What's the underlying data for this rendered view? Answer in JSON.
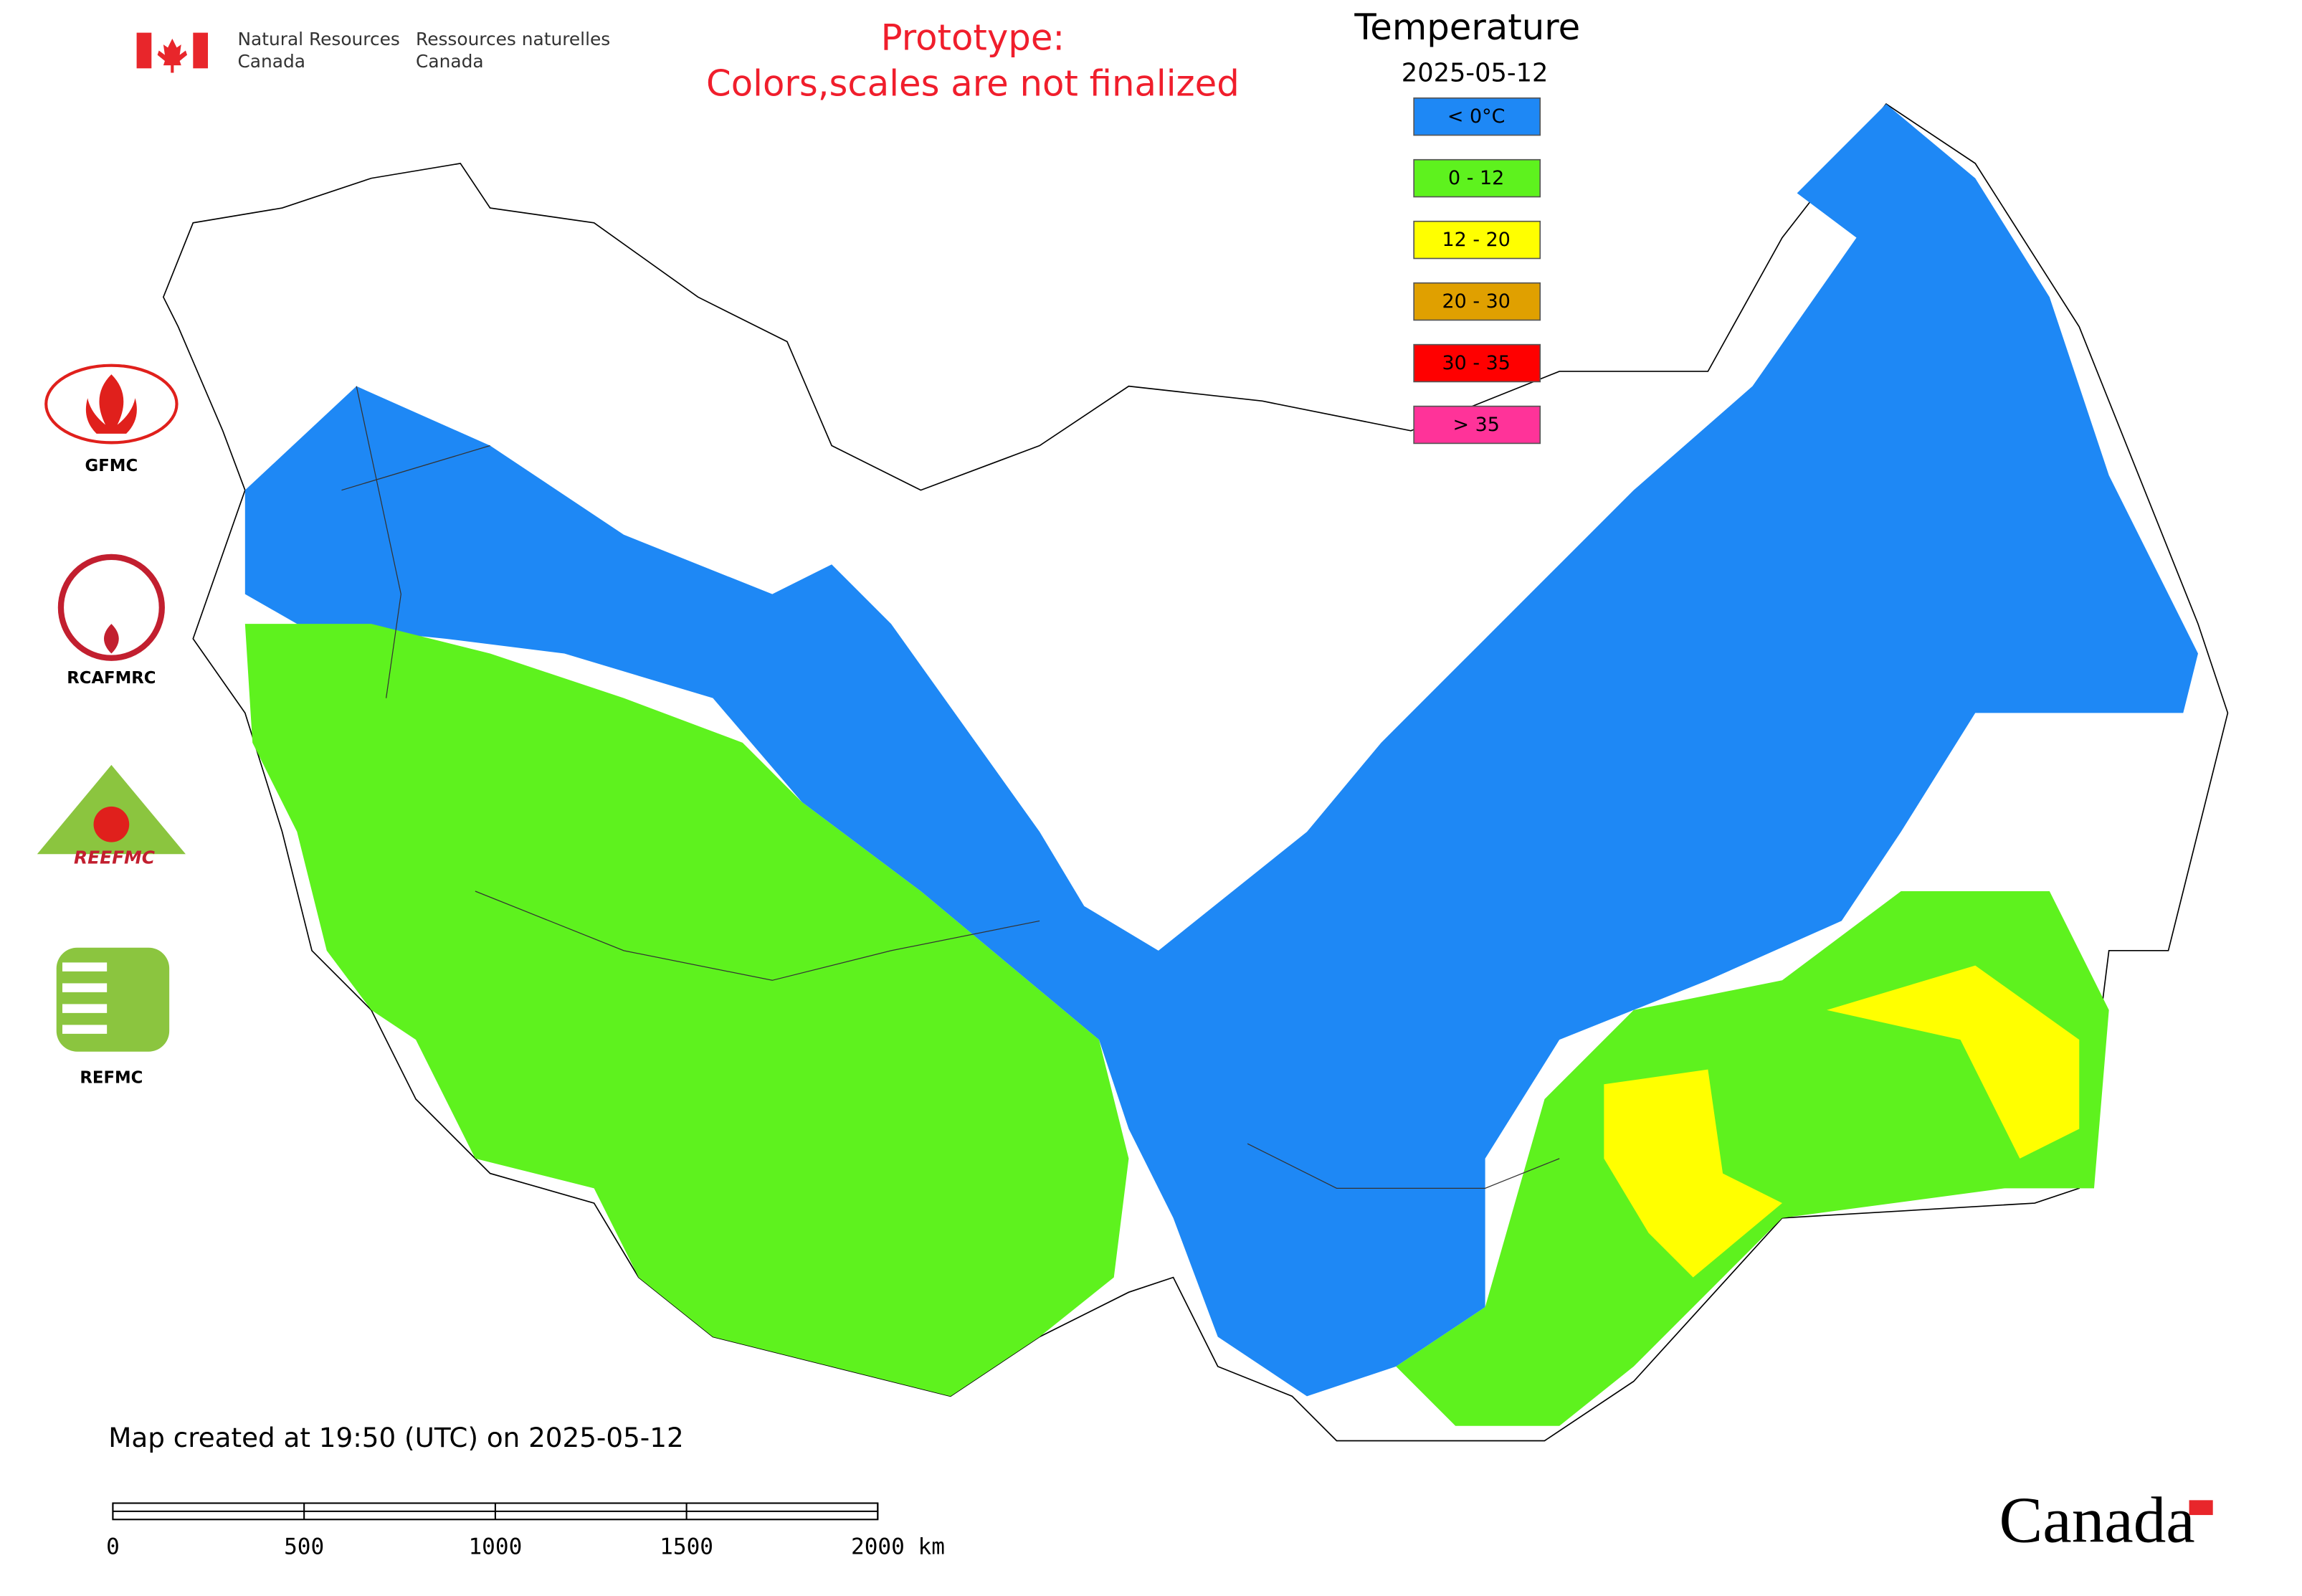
{
  "header": {
    "agency_en": [
      "Natural Resources",
      "Canada"
    ],
    "agency_fr": [
      "Ressources naturelles",
      "Canada"
    ]
  },
  "notice": [
    "Prototype:",
    "Colors,scales are not finalized"
  ],
  "legend": {
    "title": "Temperature",
    "date": "2025-05-12",
    "items": [
      {
        "label": "< 0°C",
        "color": "#1e88f5"
      },
      {
        "label": "0 - 12",
        "color": "#5ef21e"
      },
      {
        "label": "12 - 20",
        "color": "#ffff00"
      },
      {
        "label": "20 - 30",
        "color": "#e0a000"
      },
      {
        "label": "30 - 35",
        "color": "#ff0000"
      },
      {
        "label": "> 35",
        "color": "#ff3399"
      }
    ]
  },
  "logos": [
    "GFMC",
    "RCAFMRC",
    "REEFMC",
    "REFMC"
  ],
  "footer": {
    "created": "Map created at 19:50 (UTC) on 2025-05-12",
    "wordmark": "Canada"
  },
  "scale_bar": {
    "labels": [
      "0",
      "500",
      "1000",
      "1500",
      "2000 km"
    ]
  }
}
